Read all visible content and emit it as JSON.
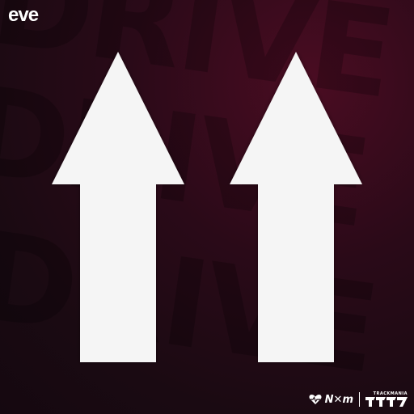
{
  "brand": {
    "left_logo": "eve",
    "accent": "#e3173e"
  },
  "background": {
    "words": [
      "DRIVE",
      "DRIVE",
      "DRIVE"
    ],
    "base_color": "#1a0a12",
    "glow_color": "#4a0c22"
  },
  "arrows": {
    "count": 2,
    "direction": "up",
    "color": "#f5f5f5"
  },
  "partners": {
    "heart_icon": "heart-rate-icon",
    "nxm_text": "N✕m",
    "trackmania_label": "TRACKMANIA",
    "trackmania_mark": "TM-logo"
  }
}
